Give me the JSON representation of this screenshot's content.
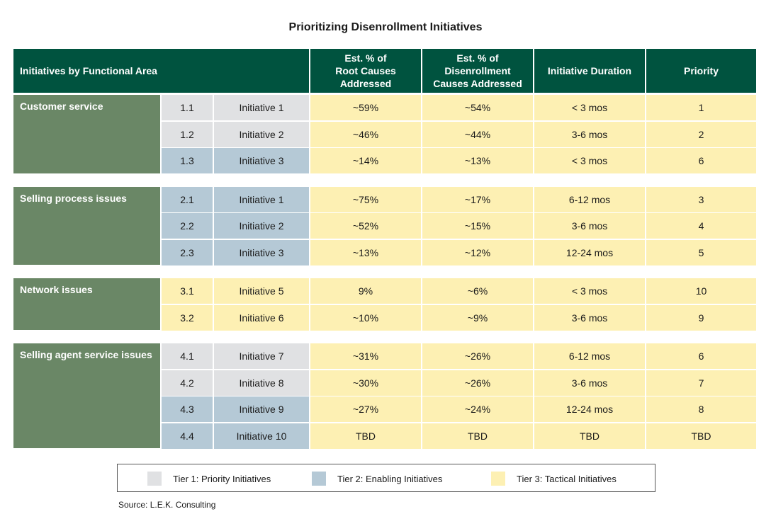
{
  "chart_data": {
    "type": "table",
    "title": "Prioritizing Disenrollment Initiatives",
    "columns": [
      "Initiatives by Functional Area",
      "Est. % of\nRoot Causes\nAddressed",
      "Est. % of\nDisenrollment\nCauses Addressed",
      "Initiative Duration",
      "Priority"
    ],
    "groups": [
      {
        "area": "Customer service",
        "rows": [
          {
            "id": "1.1",
            "name": "Initiative 1",
            "tier": 1,
            "root": "~59%",
            "disenroll": "~54%",
            "duration": "< 3 mos",
            "priority": "1"
          },
          {
            "id": "1.2",
            "name": "Initiative 2",
            "tier": 1,
            "root": "~46%",
            "disenroll": "~44%",
            "duration": "3-6 mos",
            "priority": "2"
          },
          {
            "id": "1.3",
            "name": "Initiative 3",
            "tier": 2,
            "root": "~14%",
            "disenroll": "~13%",
            "duration": "< 3 mos",
            "priority": "6"
          }
        ]
      },
      {
        "area": "Selling process issues",
        "rows": [
          {
            "id": "2.1",
            "name": "Initiative 1",
            "tier": 2,
            "root": "~75%",
            "disenroll": "~17%",
            "duration": "6-12 mos",
            "priority": "3"
          },
          {
            "id": "2.2",
            "name": "Initiative 2",
            "tier": 2,
            "root": "~52%",
            "disenroll": "~15%",
            "duration": "3-6 mos",
            "priority": "4"
          },
          {
            "id": "2.3",
            "name": "Initiative 3",
            "tier": 2,
            "root": "~13%",
            "disenroll": "~12%",
            "duration": "12-24 mos",
            "priority": "5"
          }
        ]
      },
      {
        "area": "Network issues",
        "rows": [
          {
            "id": "3.1",
            "name": "Initiative 5",
            "tier": 3,
            "root": "9%",
            "disenroll": "~6%",
            "duration": "< 3 mos",
            "priority": "10"
          },
          {
            "id": "3.2",
            "name": "Initiative 6",
            "tier": 3,
            "root": "~10%",
            "disenroll": "~9%",
            "duration": "3-6 mos",
            "priority": "9"
          }
        ]
      },
      {
        "area": "Selling agent service issues",
        "rows": [
          {
            "id": "4.1",
            "name": "Initiative 7",
            "tier": 1,
            "root": "~31%",
            "disenroll": "~26%",
            "duration": "6-12 mos",
            "priority": "6"
          },
          {
            "id": "4.2",
            "name": "Initiative 8",
            "tier": 1,
            "root": "~30%",
            "disenroll": "~26%",
            "duration": "3-6 mos",
            "priority": "7"
          },
          {
            "id": "4.3",
            "name": "Initiative 9",
            "tier": 2,
            "root": "~27%",
            "disenroll": "~24%",
            "duration": "12-24 mos",
            "priority": "8"
          },
          {
            "id": "4.4",
            "name": "Initiative 10",
            "tier": 2,
            "root": "TBD",
            "disenroll": "TBD",
            "duration": "TBD",
            "priority": "TBD"
          }
        ]
      }
    ],
    "legend": [
      {
        "tier": 1,
        "label": "Tier 1: Priority Initiatives",
        "color": "#e0e1e3"
      },
      {
        "tier": 2,
        "label": "Tier 2: Enabling Initiatives",
        "color": "#b5c9d6"
      },
      {
        "tier": 3,
        "label": "Tier 3: Tactical Initiatives",
        "color": "#fdf0b3"
      }
    ],
    "source": "Source: L.E.K. Consulting"
  },
  "colors": {
    "header": "#00533f",
    "area": "#6a8766",
    "data_cells": "#fdf0b3"
  }
}
